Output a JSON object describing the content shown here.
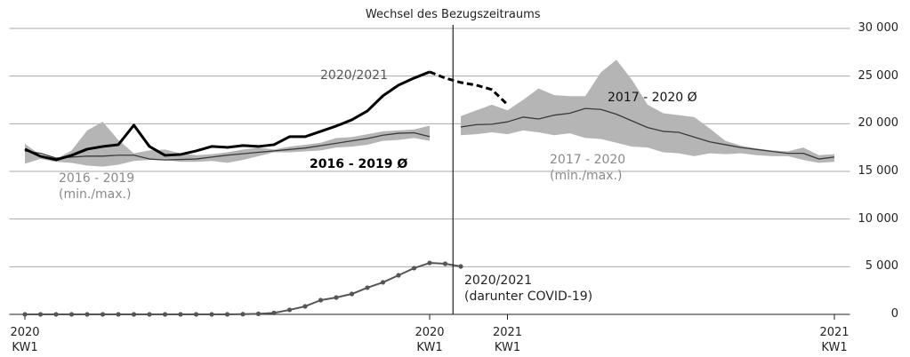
{
  "chart_data": {
    "type": "line",
    "vline": {
      "x": 27.5,
      "label": "Wechsel des Bezugszeitraums"
    },
    "xlim": [
      -1,
      53
    ],
    "ylim": [
      0,
      30000
    ],
    "xticks": [
      {
        "value": 0,
        "label": "2020\nKW1"
      },
      {
        "value": 26,
        "label": "2020\nKW1"
      },
      {
        "value": 31,
        "label": "2021\nKW1"
      },
      {
        "value": 52,
        "label": "2021\nKW1"
      }
    ],
    "yticks": [
      0,
      {
        "value": 5000,
        "label": "5 000"
      },
      {
        "value": 10000,
        "label": "10 000"
      },
      {
        "value": 15000,
        "label": "15 000"
      },
      {
        "value": 20000,
        "label": "20 000"
      },
      {
        "value": 25000,
        "label": "25 000"
      },
      {
        "value": 30000,
        "label": "30 000"
      }
    ],
    "grid": true,
    "x": [
      0,
      1,
      2,
      3,
      4,
      5,
      6,
      7,
      8,
      9,
      10,
      11,
      12,
      13,
      14,
      15,
      16,
      17,
      18,
      19,
      20,
      21,
      22,
      23,
      24,
      25,
      26,
      27,
      28,
      29,
      30,
      31,
      32,
      33,
      34,
      35,
      36,
      37,
      38,
      39,
      40,
      41,
      42,
      43,
      44,
      45,
      46,
      47,
      48,
      49,
      50,
      51,
      52
    ],
    "series": [
      {
        "name": "2016 - 2019\n(min./max.)",
        "kind": "band",
        "color": "#b5b5b5",
        "high": [
          17900,
          16700,
          16300,
          17200,
          19300,
          20200,
          18300,
          16900,
          17200,
          17300,
          16900,
          16700,
          16800,
          17000,
          17300,
          17500,
          17300,
          17600,
          17800,
          18000,
          18500,
          18600,
          18900,
          19200,
          19300,
          19400,
          19800,
          null,
          null,
          null,
          null,
          null,
          null,
          null,
          null,
          null,
          null,
          null,
          null,
          null,
          null,
          null,
          null,
          null,
          null,
          null,
          null,
          null,
          null,
          null,
          null,
          null,
          null
        ],
        "low": [
          15800,
          16300,
          16000,
          15900,
          15600,
          15500,
          15700,
          16100,
          16200,
          16200,
          16000,
          16000,
          16100,
          15900,
          16200,
          16600,
          17000,
          17000,
          17100,
          17200,
          17500,
          17600,
          17800,
          18200,
          18300,
          18500,
          18200,
          null,
          null,
          null,
          null,
          null,
          null,
          null,
          null,
          null,
          null,
          null,
          null,
          null,
          null,
          null,
          null,
          null,
          null,
          null,
          null,
          null,
          null,
          null,
          null,
          null,
          null
        ]
      },
      {
        "name": "2017 - 2020\n(min./max.)",
        "kind": "band",
        "color": "#b5b5b5",
        "high": [
          null,
          null,
          null,
          null,
          null,
          null,
          null,
          null,
          null,
          null,
          null,
          null,
          null,
          null,
          null,
          null,
          null,
          null,
          null,
          null,
          null,
          null,
          null,
          null,
          null,
          null,
          null,
          null,
          20800,
          21400,
          22000,
          21400,
          22500,
          23700,
          23000,
          22900,
          22900,
          25400,
          26700,
          24600,
          22000,
          21100,
          20900,
          20700,
          19500,
          18200,
          17700,
          17400,
          17200,
          17100,
          17500,
          16700,
          16800
        ],
        "low": [
          null,
          null,
          null,
          null,
          null,
          null,
          null,
          null,
          null,
          null,
          null,
          null,
          null,
          null,
          null,
          null,
          null,
          null,
          null,
          null,
          null,
          null,
          null,
          null,
          null,
          null,
          null,
          null,
          18800,
          18900,
          19100,
          18900,
          19300,
          19100,
          18800,
          19000,
          18500,
          18400,
          18000,
          17600,
          17500,
          17000,
          16900,
          16600,
          16900,
          16800,
          16900,
          16700,
          16600,
          16600,
          16200,
          15900,
          16000
        ]
      },
      {
        "name": "2016 - 2019 Ø",
        "kind": "line",
        "color": "#3a3a3a",
        "width": 1.3,
        "values": [
          17150,
          16900,
          16400,
          16500,
          16600,
          16600,
          16700,
          16700,
          16300,
          16200,
          16250,
          16300,
          16500,
          16700,
          16850,
          17000,
          17150,
          17300,
          17450,
          17700,
          17950,
          18200,
          18450,
          18800,
          19000,
          19050,
          18640,
          null,
          null,
          null,
          null,
          null,
          null,
          null,
          null,
          null,
          null,
          null,
          null,
          null,
          null,
          null,
          null,
          null,
          null,
          null,
          null,
          null,
          null,
          null,
          null,
          null,
          null
        ]
      },
      {
        "name": "2017 - 2020 Ø",
        "kind": "line",
        "color": "#3a3a3a",
        "width": 1.3,
        "values": [
          null,
          null,
          null,
          null,
          null,
          null,
          null,
          null,
          null,
          null,
          null,
          null,
          null,
          null,
          null,
          null,
          null,
          null,
          null,
          null,
          null,
          null,
          null,
          null,
          null,
          null,
          null,
          null,
          19660,
          19900,
          19950,
          20200,
          20700,
          20500,
          20900,
          21100,
          21600,
          21500,
          21000,
          20300,
          19600,
          19200,
          19100,
          18600,
          18100,
          17800,
          17500,
          17300,
          17100,
          16900,
          16900,
          16300,
          16500
        ]
      },
      {
        "name": "2020/2021",
        "kind": "line",
        "color": "#000000",
        "width": 3,
        "values": [
          17335,
          16590,
          16217,
          16683,
          17335,
          17615,
          17800,
          19850,
          17615,
          16683,
          16776,
          17150,
          17615,
          17520,
          17710,
          17615,
          17800,
          18640,
          18640,
          19200,
          19760,
          20410,
          21340,
          22930,
          24050,
          24790,
          25440,
          null,
          null,
          null,
          null,
          null,
          null,
          null,
          null,
          null,
          null,
          null,
          null,
          null,
          null,
          null,
          null,
          null,
          null,
          null,
          null,
          null,
          null,
          null,
          null,
          null,
          null
        ]
      },
      {
        "kind": "line",
        "color": "#000000",
        "width": 3,
        "dashed": true,
        "values": [
          null,
          null,
          null,
          null,
          null,
          null,
          null,
          null,
          null,
          null,
          null,
          null,
          null,
          null,
          null,
          null,
          null,
          null,
          null,
          null,
          null,
          null,
          null,
          null,
          null,
          null,
          25440,
          24790,
          24325,
          24045,
          23580,
          22000,
          null,
          null,
          null,
          null,
          null,
          null,
          null,
          null,
          null,
          null,
          null,
          null,
          null,
          null,
          null,
          null,
          null,
          null,
          null,
          null,
          null
        ]
      },
      {
        "name": "2020/2021\n(darunter COVID-19)",
        "kind": "line",
        "color": "#555555",
        "width": 2,
        "markers": true,
        "values": [
          0,
          0,
          0,
          0,
          0,
          0,
          0,
          0,
          0,
          0,
          0,
          0,
          0,
          0,
          20,
          60,
          150,
          470,
          840,
          1490,
          1770,
          2140,
          2800,
          3360,
          4100,
          4850,
          5400,
          5310,
          5030,
          null,
          null,
          null,
          null,
          null,
          null,
          null,
          null,
          null,
          null,
          null,
          null,
          null,
          null,
          null,
          null,
          null,
          null,
          null,
          null,
          null,
          null,
          null,
          null
        ]
      }
    ]
  }
}
